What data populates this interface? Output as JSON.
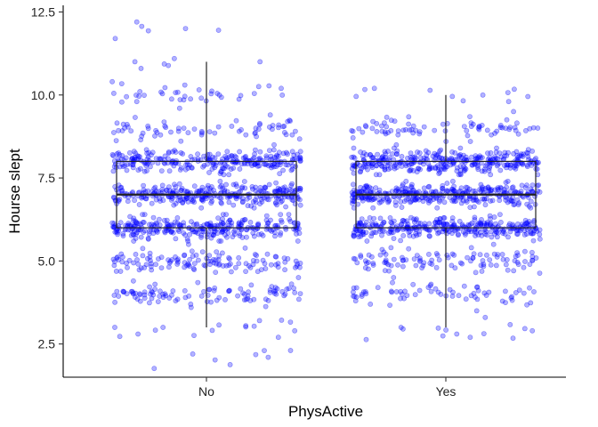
{
  "chart_data": {
    "type": "boxplot_with_jitter",
    "xlabel": "PhysActive",
    "ylabel": "Hourse slept",
    "categories": [
      "No",
      "Yes"
    ],
    "ylim": [
      1.5,
      12.7
    ],
    "yticks": [
      2.5,
      5.0,
      7.5,
      10.0,
      12.5
    ],
    "ytick_labels": [
      "2.5",
      "5.0",
      "7.5",
      "10.0",
      "12.5"
    ],
    "grid": false,
    "legend": "none",
    "point_color": "#0000ff",
    "point_alpha": 0.3,
    "box_color": "#222222",
    "boxes": [
      {
        "category": "No",
        "whisker_low": 3,
        "q1": 6,
        "median": 7,
        "q3": 8,
        "whisker_high": 11
      },
      {
        "category": "Yes",
        "whisker_low": 3,
        "q1": 6,
        "median": 7,
        "q3": 8,
        "whisker_high": 10
      }
    ],
    "series": [
      {
        "category": "No",
        "hours_slept": [
          2.1,
          2.2,
          2.3,
          2.7,
          2.8,
          2.9,
          3.0,
          3.6,
          3.7,
          3.8,
          3.9,
          4.0,
          4.1,
          4.2,
          4.3,
          4.5,
          4.8,
          5.2,
          5.5,
          5.8,
          6.1,
          6.3,
          6.6,
          6.8,
          7.1,
          7.3,
          7.6,
          7.8,
          8.1,
          8.2,
          8.5,
          8.8,
          9.0,
          9.2,
          9.4,
          9.6,
          9.8,
          10.0,
          10.1,
          10.2,
          10.3,
          10.4,
          10.8,
          11.0,
          11.7,
          12.0,
          12.2
        ],
        "counts": {
          "2": 5,
          "3": 12,
          "4": 90,
          "5": 120,
          "6": 280,
          "7": 290,
          "8": 250,
          "9": 60,
          "10": 30,
          "11": 4,
          "12": 3
        }
      },
      {
        "category": "Yes",
        "hours_slept": [
          2.7,
          2.8,
          2.9,
          3.3,
          3.5,
          3.7,
          3.8,
          4.0,
          4.2,
          4.3,
          4.5,
          4.8,
          5.2,
          5.5,
          5.8,
          6.1,
          6.3,
          6.6,
          6.8,
          7.1,
          7.3,
          7.6,
          7.8,
          8.1,
          8.2,
          8.5,
          8.8,
          9.0,
          9.2,
          9.5,
          9.8,
          10.0,
          10.2
        ],
        "counts": {
          "3": 10,
          "4": 60,
          "5": 100,
          "6": 310,
          "7": 330,
          "8": 320,
          "9": 70,
          "10": 8
        }
      }
    ]
  }
}
